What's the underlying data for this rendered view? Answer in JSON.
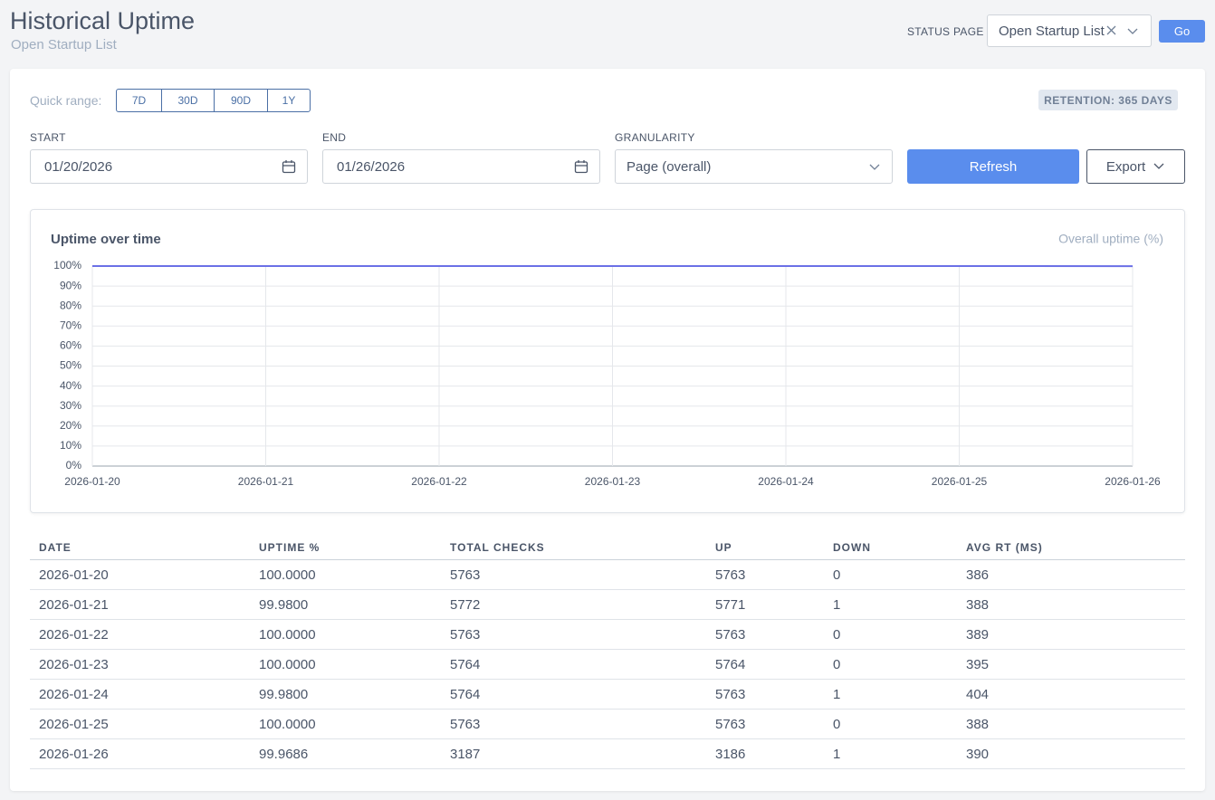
{
  "header": {
    "title": "Historical Uptime",
    "subtitle": "Open Startup List",
    "status_page_label": "STATUS PAGE",
    "status_page_value": "Open Startup List",
    "go": "Go"
  },
  "controls": {
    "quick_range_label": "Quick range:",
    "quick_ranges": [
      "7D",
      "30D",
      "90D",
      "1Y"
    ],
    "retention": "RETENTION: 365 DAYS",
    "start_label": "START",
    "start_value": "01/20/2026",
    "end_label": "END",
    "end_value": "01/26/2026",
    "granularity_label": "GRANULARITY",
    "granularity_value": "Page (overall)",
    "refresh": "Refresh",
    "export": "Export"
  },
  "chart_data": {
    "type": "line",
    "title": "Uptime over time",
    "categories": [
      "2026-01-20",
      "2026-01-21",
      "2026-01-22",
      "2026-01-23",
      "2026-01-24",
      "2026-01-25",
      "2026-01-26"
    ],
    "series": [
      {
        "name": "Overall uptime (%)",
        "color": "#6b70e6",
        "values": [
          100,
          99.98,
          100,
          100,
          99.98,
          100,
          99.9686
        ]
      }
    ],
    "ylim": [
      0,
      100
    ],
    "yticks": [
      {
        "value": 0,
        "label": "0%"
      },
      {
        "value": 10,
        "label": "10%"
      },
      {
        "value": 20,
        "label": "20%"
      },
      {
        "value": 30,
        "label": "30%"
      },
      {
        "value": 40,
        "label": "40%"
      },
      {
        "value": 50,
        "label": "50%"
      },
      {
        "value": 60,
        "label": "60%"
      },
      {
        "value": 70,
        "label": "70%"
      },
      {
        "value": 80,
        "label": "80%"
      },
      {
        "value": 90,
        "label": "90%"
      },
      {
        "value": 100,
        "label": "100%"
      }
    ],
    "grid": true
  },
  "table": {
    "columns": [
      "DATE",
      "UPTIME %",
      "TOTAL CHECKS",
      "UP",
      "DOWN",
      "AVG RT (MS)"
    ],
    "rows": [
      [
        "2026-01-20",
        "100.0000",
        "5763",
        "5763",
        "0",
        "386"
      ],
      [
        "2026-01-21",
        "99.9800",
        "5772",
        "5771",
        "1",
        "388"
      ],
      [
        "2026-01-22",
        "100.0000",
        "5763",
        "5763",
        "0",
        "389"
      ],
      [
        "2026-01-23",
        "100.0000",
        "5764",
        "5764",
        "0",
        "395"
      ],
      [
        "2026-01-24",
        "99.9800",
        "5764",
        "5763",
        "1",
        "404"
      ],
      [
        "2026-01-25",
        "100.0000",
        "5763",
        "5763",
        "0",
        "388"
      ],
      [
        "2026-01-26",
        "99.9686",
        "3187",
        "3186",
        "1",
        "390"
      ]
    ]
  }
}
